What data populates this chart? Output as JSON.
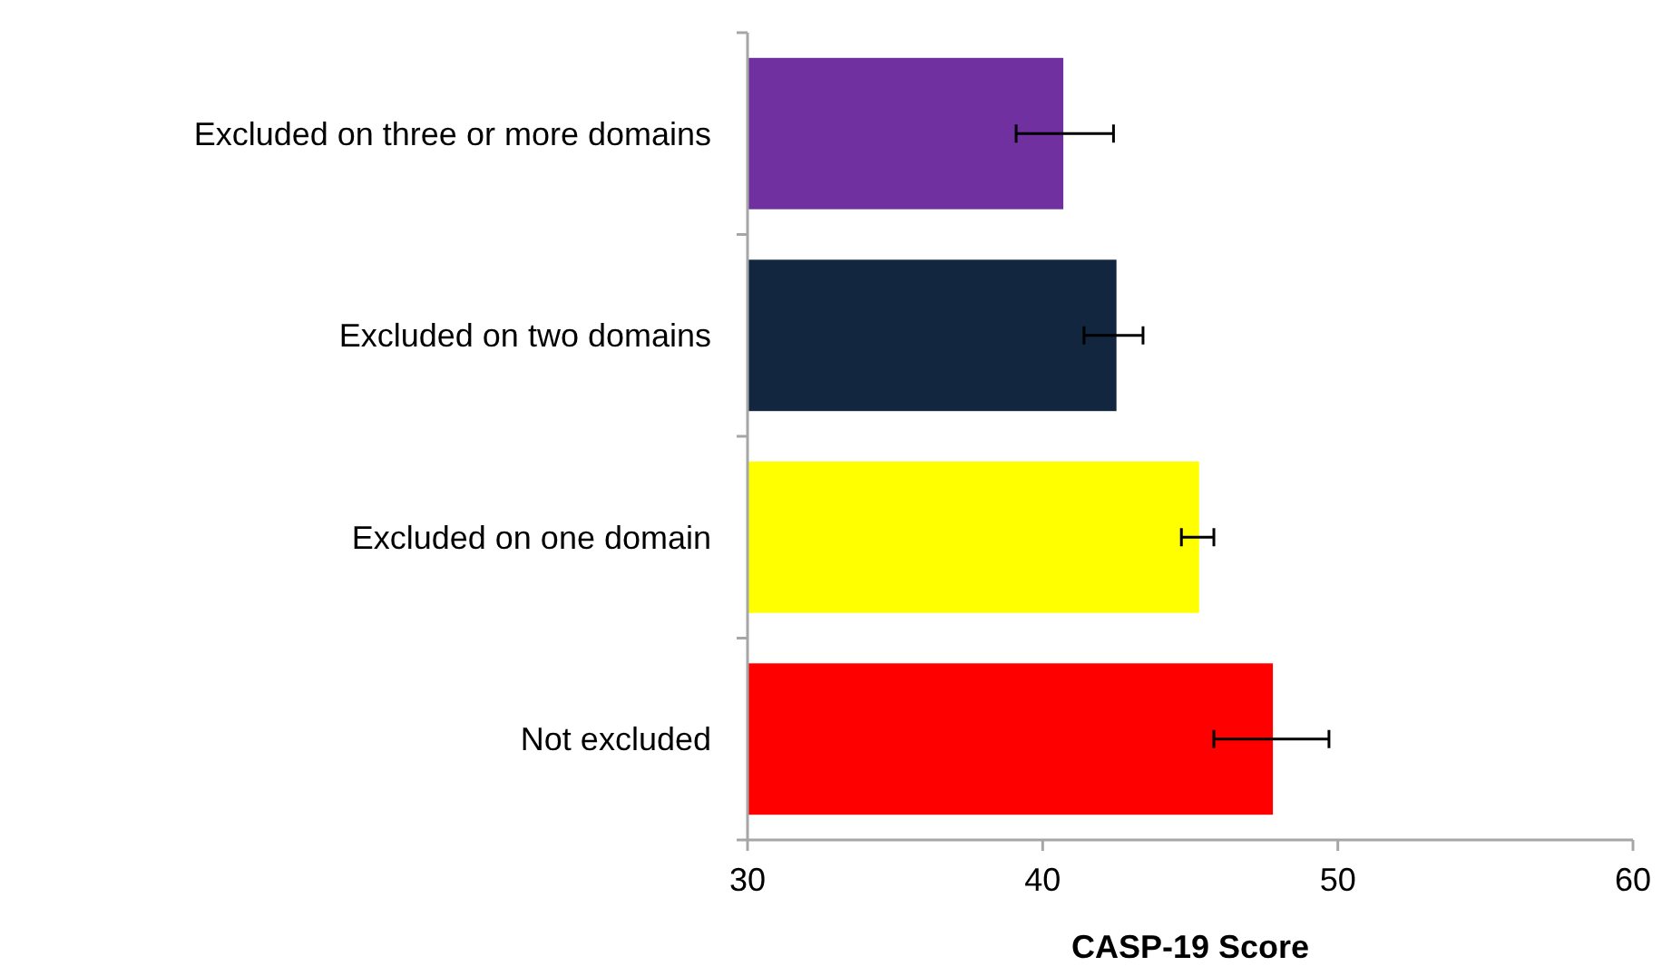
{
  "chart_data": {
    "type": "bar",
    "orientation": "horizontal",
    "xlabel": "CASP-19 Score",
    "categories": [
      "Excluded on three or more domains",
      "Excluded on two domains",
      "Excluded on one domain",
      "Not excluded"
    ],
    "values": [
      40.7,
      42.5,
      45.3,
      47.8
    ],
    "colors": [
      "#7030a0",
      "#12263f",
      "#ffff00",
      "#ff0000"
    ],
    "errors": [
      [
        39.1,
        42.4
      ],
      [
        41.4,
        43.4
      ],
      [
        44.7,
        45.8
      ],
      [
        45.8,
        49.7
      ]
    ],
    "xlim": [
      30,
      60
    ],
    "xticks": [
      30,
      40,
      50,
      60
    ]
  }
}
